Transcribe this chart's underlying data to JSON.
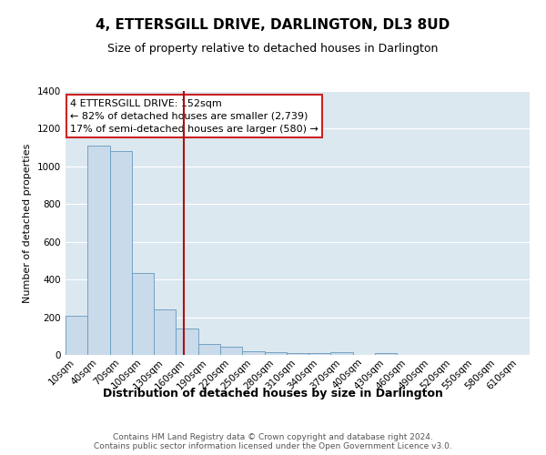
{
  "title": "4, ETTERSGILL DRIVE, DARLINGTON, DL3 8UD",
  "subtitle": "Size of property relative to detached houses in Darlington",
  "xlabel": "Distribution of detached houses by size in Darlington",
  "ylabel": "Number of detached properties",
  "bar_labels": [
    "10sqm",
    "40sqm",
    "70sqm",
    "100sqm",
    "130sqm",
    "160sqm",
    "190sqm",
    "220sqm",
    "250sqm",
    "280sqm",
    "310sqm",
    "340sqm",
    "370sqm",
    "400sqm",
    "430sqm",
    "460sqm",
    "490sqm",
    "520sqm",
    "550sqm",
    "580sqm",
    "610sqm"
  ],
  "bar_values": [
    210,
    1110,
    1080,
    435,
    240,
    140,
    60,
    45,
    20,
    15,
    10,
    10,
    15,
    0,
    10,
    0,
    0,
    0,
    0,
    0,
    0
  ],
  "bar_color": "#c9daea",
  "bar_edge_color": "#6699bb",
  "vline_color": "#aa1111",
  "vline_x_index": 4.85,
  "annotation_title": "4 ETTERSGILL DRIVE: 152sqm",
  "annotation_line1": "← 82% of detached houses are smaller (2,739)",
  "annotation_line2": "17% of semi-detached houses are larger (580) →",
  "annotation_box_facecolor": "#ffffff",
  "annotation_box_edgecolor": "#cc2222",
  "ylim": [
    0,
    1400
  ],
  "yticks": [
    0,
    200,
    400,
    600,
    800,
    1000,
    1200,
    1400
  ],
  "plot_bg_color": "#dce8f0",
  "fig_bg_color": "#ffffff",
  "grid_color": "#ffffff",
  "footer_line1": "Contains HM Land Registry data © Crown copyright and database right 2024.",
  "footer_line2": "Contains public sector information licensed under the Open Government Licence v3.0.",
  "title_fontsize": 11,
  "subtitle_fontsize": 9,
  "ylabel_fontsize": 8,
  "xlabel_fontsize": 9,
  "tick_fontsize": 7.5,
  "footer_fontsize": 6.5,
  "annotation_fontsize": 8
}
